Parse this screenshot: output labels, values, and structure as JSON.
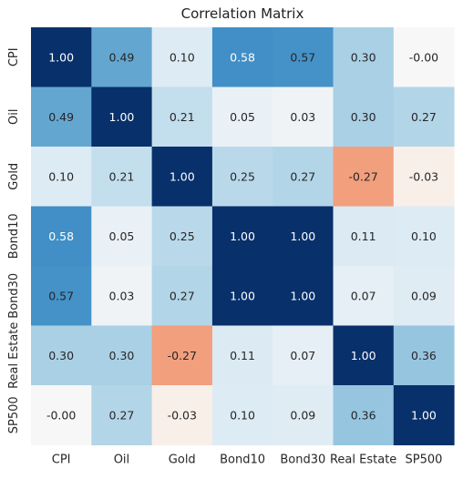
{
  "chart_data": {
    "type": "heatmap",
    "title": "Correlation Matrix",
    "xlabel": "",
    "ylabel": "",
    "x_categories": [
      "CPI",
      "Oil",
      "Gold",
      "Bond10",
      "Bond30",
      "Real Estate",
      "SP500"
    ],
    "y_categories": [
      "CPI",
      "Oil",
      "Gold",
      "Bond10",
      "Bond30",
      "Real Estate",
      "SP500"
    ],
    "values": [
      [
        1.0,
        0.49,
        0.1,
        0.58,
        0.57,
        0.3,
        -0.0
      ],
      [
        0.49,
        1.0,
        0.21,
        0.05,
        0.03,
        0.3,
        0.27
      ],
      [
        0.1,
        0.21,
        1.0,
        0.25,
        0.27,
        -0.27,
        -0.03
      ],
      [
        0.58,
        0.05,
        0.25,
        1.0,
        1.0,
        0.11,
        0.1
      ],
      [
        0.57,
        0.03,
        0.27,
        1.0,
        1.0,
        0.07,
        0.09
      ],
      [
        0.3,
        0.3,
        -0.27,
        0.11,
        0.07,
        1.0,
        0.36
      ],
      [
        -0.0,
        0.27,
        -0.03,
        0.1,
        0.09,
        0.36,
        1.0
      ]
    ],
    "cell_labels": [
      [
        "1.00",
        "0.49",
        "0.10",
        "0.58",
        "0.57",
        "0.30",
        "-0.00"
      ],
      [
        "0.49",
        "1.00",
        "0.21",
        "0.05",
        "0.03",
        "0.30",
        "0.27"
      ],
      [
        "0.10",
        "0.21",
        "1.00",
        "0.25",
        "0.27",
        "-0.27",
        "-0.03"
      ],
      [
        "0.58",
        "0.05",
        "0.25",
        "1.00",
        "1.00",
        "0.11",
        "0.10"
      ],
      [
        "0.57",
        "0.03",
        "0.27",
        "1.00",
        "1.00",
        "0.07",
        "0.09"
      ],
      [
        "0.30",
        "0.30",
        "-0.27",
        "0.11",
        "0.07",
        "1.00",
        "0.36"
      ],
      [
        "-0.00",
        "0.27",
        "-0.03",
        "0.10",
        "0.09",
        "0.36",
        "1.00"
      ]
    ],
    "value_range": [
      -1,
      1
    ],
    "colormap": "diverging red-blue (RdBu)",
    "colorbar": false,
    "grid": false,
    "colors": {
      "strong_positive": "#08306b",
      "neutral": "#f7f7f7",
      "negative": "#f7c4a8"
    }
  }
}
